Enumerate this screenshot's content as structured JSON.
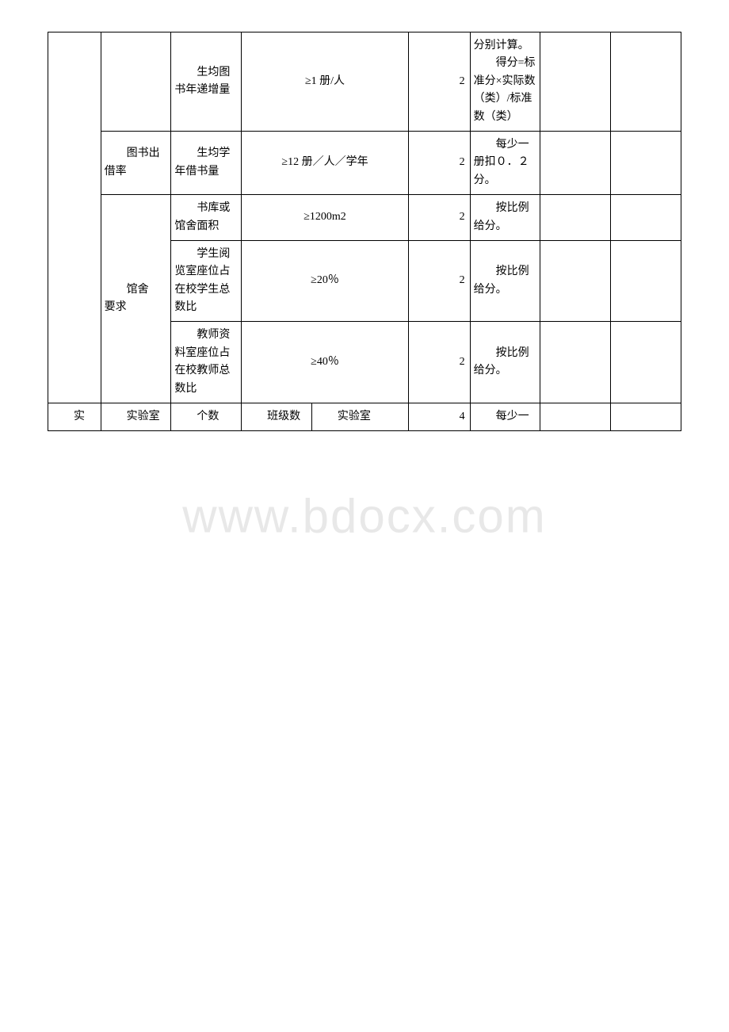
{
  "watermark": "www.bdocx.com",
  "table": {
    "rows": [
      {
        "c1": "",
        "c2": "",
        "c3": "　　生均图书年递增量",
        "c4": "≥1 册/人",
        "c5": "",
        "c6": "2",
        "c7": "分别计算。\n　　得分=标准分×实际数（类）/标准数（类）",
        "c8": "",
        "c9": ""
      },
      {
        "c1": "",
        "c2": "　　图书出借率",
        "c3": "　　生均学年借书量",
        "c4": "≥12 册／人／学年",
        "c5": "",
        "c6": "2",
        "c7": "　　每少一册扣０．２分。",
        "c8": "",
        "c9": ""
      },
      {
        "c1": "",
        "c2": "　　馆舍　　要求",
        "c3": "　　书库或馆舍面积",
        "c4": "≥1200m2",
        "c5": "",
        "c6": "2",
        "c7": "　　按比例给分。",
        "c8": "",
        "c9": ""
      },
      {
        "c1": "",
        "c2": "",
        "c3": "　　学生阅览室座位占在校学生总数比",
        "c4": "≥20％",
        "c5": "",
        "c6": "2",
        "c7": "　　按比例给分。",
        "c8": "",
        "c9": ""
      },
      {
        "c1": "",
        "c2": "",
        "c3": "　　教师资料室座位占在校教师总数比",
        "c4": "≥40％",
        "c5": "",
        "c6": "2",
        "c7": "　　按比例给分。",
        "c8": "",
        "c9": ""
      },
      {
        "c1": "　　实",
        "c2": "　　实验室",
        "c3": "　　个数",
        "c4": "　　班级数",
        "c5": "　　实验室",
        "c6": "4",
        "c7": "　　每少一",
        "c8": "",
        "c9": ""
      }
    ]
  }
}
